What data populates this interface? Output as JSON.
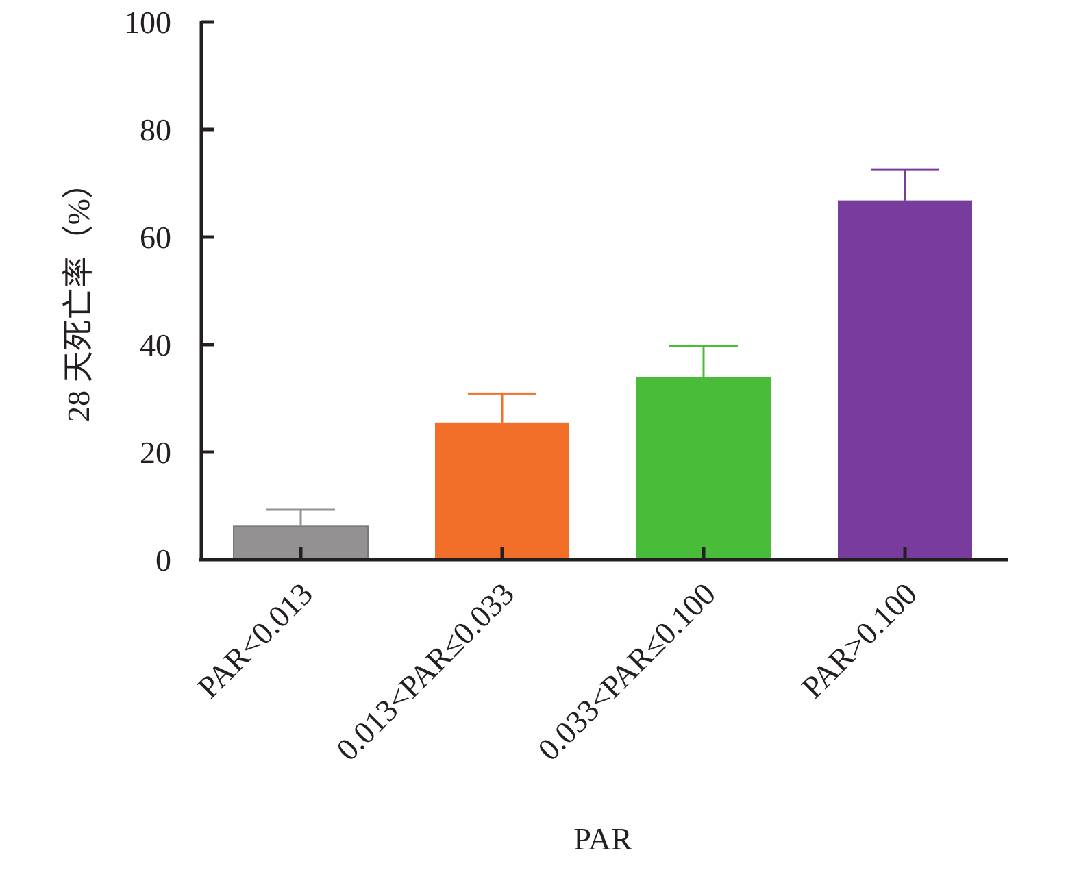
{
  "chart_data": {
    "type": "bar",
    "title": "",
    "xlabel": "PAR",
    "ylabel": "28 天死亡率（%）",
    "ylim": [
      0,
      100
    ],
    "yticks": [
      0,
      20,
      40,
      60,
      80,
      100
    ],
    "categories": [
      "PAR<0.013",
      "0.013<PAR≤0.033",
      "0.033<PAR≤0.100",
      "PAR>0.100"
    ],
    "values": [
      6.2,
      25.5,
      34.0,
      66.8
    ],
    "error_upper": [
      9.3,
      30.9,
      39.8,
      72.6
    ],
    "colors": [
      "#939192",
      "#f26f29",
      "#49bc3a",
      "#773c9e"
    ],
    "grid": false,
    "legend": "none"
  }
}
